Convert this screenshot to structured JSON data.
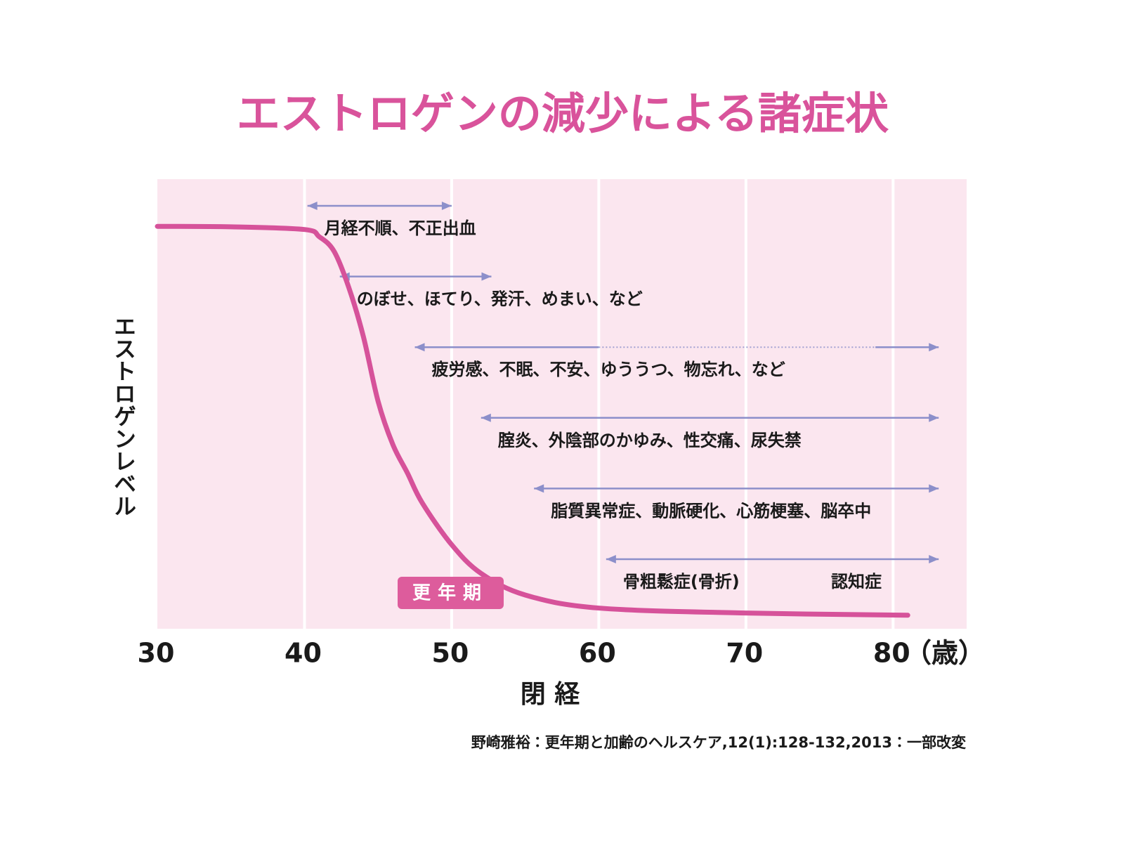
{
  "chart_data": {
    "type": "line",
    "title": "エストロゲンの減少による諸症状",
    "y_label": "エストロゲンレベル",
    "x_unit": "（歳）",
    "xlim": [
      30,
      85
    ],
    "xticks": [
      30,
      40,
      50,
      60,
      70,
      80
    ],
    "ylim": [
      0,
      100
    ],
    "grid": true,
    "series": [
      {
        "name": "エストロゲンレベル",
        "color": "#d6529a",
        "x": [
          30,
          35,
          40,
          41,
          42,
          43,
          44,
          45,
          46,
          47,
          48,
          50,
          52,
          55,
          60,
          70,
          81
        ],
        "values": [
          89.5,
          89.4,
          88.8,
          87.2,
          84,
          76,
          65,
          50.6,
          41,
          34.6,
          28,
          18.7,
          12.3,
          7.5,
          4.6,
          3.5,
          3.0
        ]
      }
    ],
    "symptoms": [
      {
        "start": 40.2,
        "end": 50.0,
        "labels": [
          "月経不順、不正出血"
        ]
      },
      {
        "start": 42.4,
        "end": 52.7,
        "labels": [
          "のぼせ、ほてり、発汗、めまい、など"
        ]
      },
      {
        "start": 47.5,
        "end": 83.1,
        "dotted": [
          60,
          78.8
        ],
        "labels": [
          "疲労感、不眠、不安、ゆううつ、物忘れ、など"
        ]
      },
      {
        "start": 52.0,
        "end": 83.1,
        "labels": [
          "腟炎、外陰部のかゆみ、性交痛、尿失禁"
        ]
      },
      {
        "start": 55.6,
        "end": 83.1,
        "labels": [
          "脂質異常症、動脈硬化、心筋梗塞、脳卒中"
        ]
      },
      {
        "start": 60.5,
        "end": 83.1,
        "labels": [
          "骨粗鬆症(骨折)",
          "認知症"
        ]
      }
    ],
    "symptom_color": "#8c8fca",
    "annotations": {
      "climacteric": "更年期",
      "menopause": "閉 経"
    },
    "source": "野崎雅裕：更年期と加齢のヘルスケア,12(1):128-132,2013：一部改変"
  }
}
